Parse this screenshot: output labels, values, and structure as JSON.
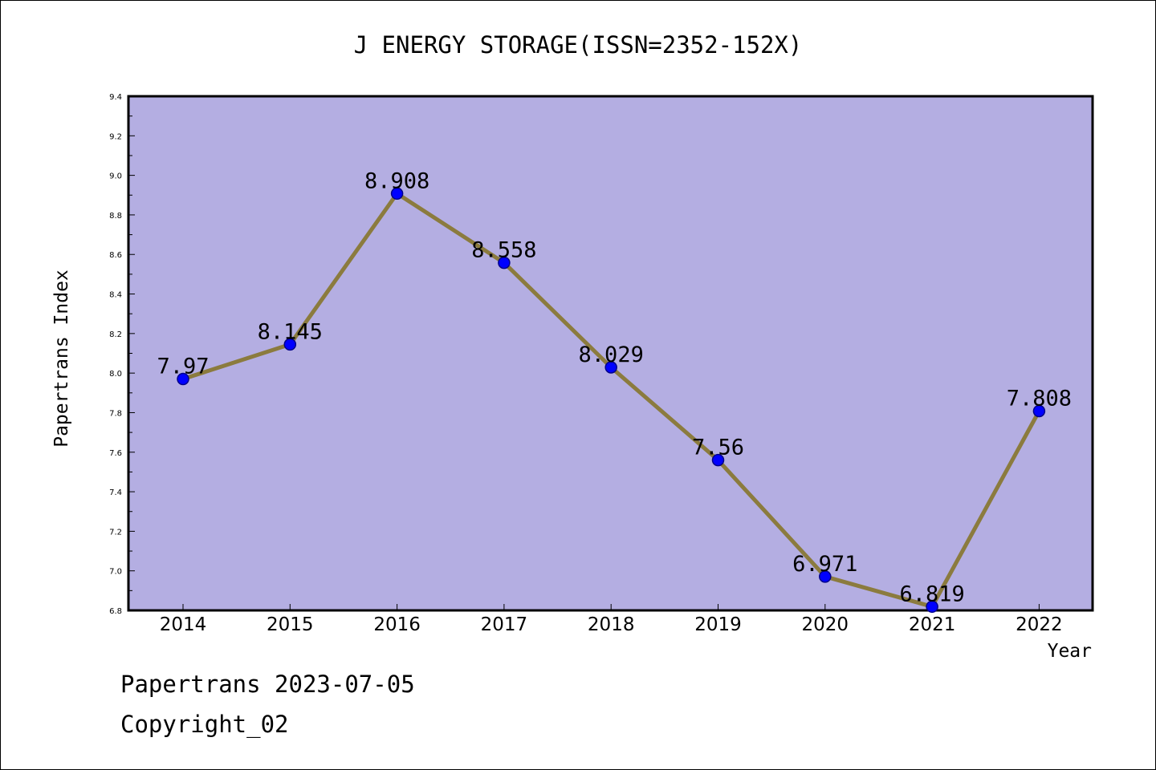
{
  "chart_data": {
    "type": "line",
    "title": "J ENERGY STORAGE(ISSN=2352-152X)",
    "xlabel": "Year",
    "ylabel": "Papertrans Index",
    "categories": [
      "2014",
      "2015",
      "2016",
      "2017",
      "2018",
      "2019",
      "2020",
      "2021",
      "2022"
    ],
    "series": [
      {
        "values": [
          7.97,
          8.145,
          8.908,
          8.558,
          8.029,
          7.56,
          6.971,
          6.819,
          7.808
        ],
        "labels": [
          "7.97",
          "8.145",
          "8.908",
          "8.558",
          "8.029",
          "7.56",
          "6.971",
          "6.819",
          "7.808"
        ]
      }
    ],
    "ylim": [
      6.8,
      9.4
    ],
    "yticks": [
      "6.8",
      "7.0",
      "7.2",
      "7.4",
      "7.6",
      "7.8",
      "8.0",
      "8.2",
      "8.4",
      "8.6",
      "8.8",
      "9.0",
      "9.2",
      "9.4"
    ],
    "grid": false,
    "colors": {
      "plot_background": "#b4aee2",
      "line": "#8b7b3e",
      "marker": "#0000ff",
      "marker_edge": "#00008b"
    }
  },
  "footer": {
    "line1": "Papertrans 2023-07-05",
    "line2": "Copyright_02"
  }
}
